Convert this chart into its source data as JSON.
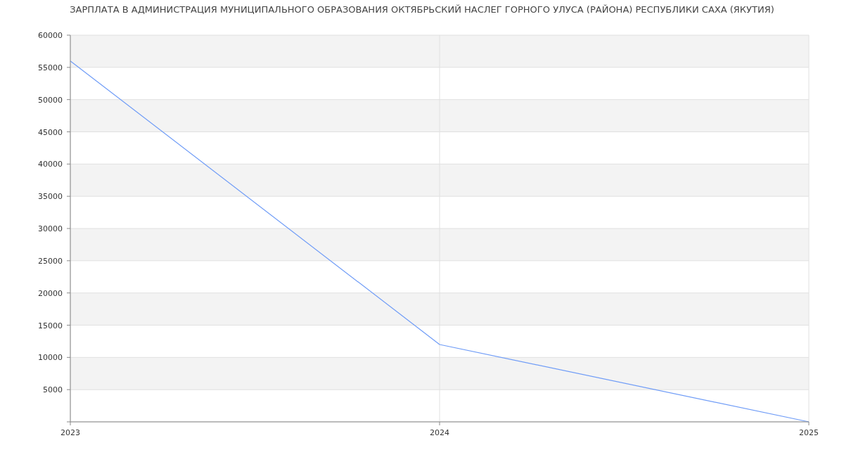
{
  "chart_data": {
    "type": "line",
    "title": "ЗАРПЛАТА В АДМИНИСТРАЦИЯ МУНИЦИПАЛЬНОГО ОБРАЗОВАНИЯ ОКТЯБРЬСКИЙ НАСЛЕГ ГОРНОГО УЛУСА (РАЙОНА) РЕСПУБЛИКИ САХА (ЯКУТИЯ)",
    "x": [
      2023,
      2024,
      2025
    ],
    "series": [
      {
        "color": "#6f9cf7",
        "values": [
          56000,
          12000,
          0
        ]
      }
    ],
    "xlim": [
      2023,
      2025
    ],
    "xticks": [
      2023,
      2024,
      2025
    ],
    "ylim": [
      0,
      60000
    ],
    "yticks": [
      {
        "value": 0,
        "label": null
      },
      5000,
      10000,
      15000,
      20000,
      25000,
      30000,
      35000,
      40000,
      45000,
      50000,
      55000,
      60000
    ],
    "grid": true,
    "marker": "none",
    "line_style": "solid"
  }
}
